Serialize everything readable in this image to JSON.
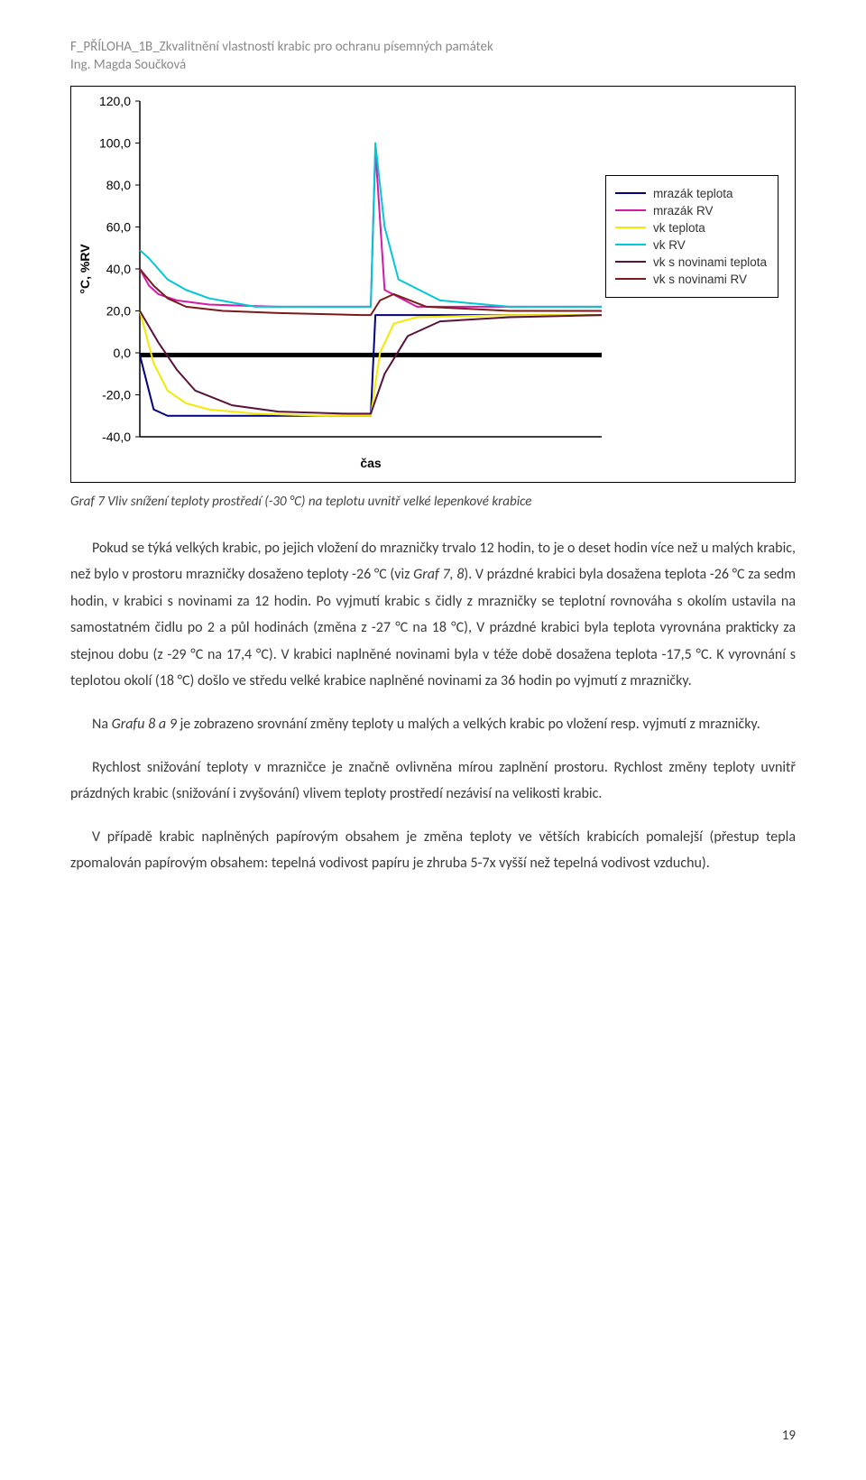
{
  "header": {
    "line1": "F_PŘÍLOHA_1B_Zkvalitnění vlastností krabic pro ochranu písemných památek",
    "line2": "Ing. Magda Součková"
  },
  "chart": {
    "type": "line",
    "title_fontsize": 0,
    "ylabel": "°C, %RV",
    "ylabel_fontsize": 14,
    "ylabel_fontweight": "bold",
    "xlabel": "čas",
    "xlabel_fontsize": 14,
    "xlabel_fontweight": "bold",
    "ylim": [
      -40,
      120
    ],
    "yticks": [
      -40,
      -20,
      0,
      20,
      40,
      60,
      80,
      100,
      120
    ],
    "ytick_labels": [
      "-40,0",
      "-20,0",
      "0,0",
      "20,0",
      "40,0",
      "60,0",
      "80,0",
      "100,0",
      "120,0"
    ],
    "xlim": [
      0,
      100
    ],
    "legend": {
      "items": [
        {
          "label": "mrazák teplota",
          "color": "#000080"
        },
        {
          "label": "mrazák RV",
          "color": "#d61aa6"
        },
        {
          "label": "vk teplota",
          "color": "#f2ea00"
        },
        {
          "label": "vk RV",
          "color": "#00c8d6"
        },
        {
          "label": "vk s novinami teplota",
          "color": "#5a123a"
        },
        {
          "label": "vk s novinami RV",
          "color": "#7a1a1a"
        }
      ]
    },
    "axis_color": "#000000",
    "background_color": "#ffffff",
    "line_width": 2,
    "series": {
      "mrazak_teplota": {
        "color": "#000080",
        "x": [
          0,
          3,
          6,
          10,
          20,
          40,
          48,
          50,
          51,
          52,
          60,
          80,
          100
        ],
        "y": [
          -1,
          -27,
          -30,
          -30,
          -30,
          -30,
          -30,
          -30,
          18,
          18,
          18,
          18,
          18
        ]
      },
      "mrazak_rv": {
        "color": "#d61aa6",
        "x": [
          0,
          2,
          4,
          8,
          15,
          30,
          48,
          50,
          51,
          53,
          60,
          80,
          100
        ],
        "y": [
          40,
          32,
          28,
          25,
          23,
          22,
          22,
          22,
          97,
          30,
          22,
          22,
          22
        ]
      },
      "vk_teplota": {
        "color": "#f2ea00",
        "x": [
          0,
          3,
          6,
          10,
          15,
          25,
          40,
          48,
          50,
          52,
          55,
          60,
          80,
          100
        ],
        "y": [
          20,
          -5,
          -18,
          -24,
          -27,
          -29,
          -30,
          -30,
          -30,
          0,
          14,
          17,
          18,
          18
        ]
      },
      "vk_rv": {
        "color": "#00c8d6",
        "x": [
          0,
          2,
          4,
          6,
          10,
          15,
          25,
          48,
          50,
          51,
          53,
          56,
          65,
          80,
          100
        ],
        "y": [
          49,
          45,
          40,
          35,
          30,
          26,
          22,
          22,
          22,
          100,
          60,
          35,
          25,
          22,
          22
        ]
      },
      "vk_novinami_teplota": {
        "color": "#5a123a",
        "x": [
          0,
          4,
          8,
          12,
          20,
          30,
          45,
          48,
          50,
          53,
          58,
          65,
          80,
          100
        ],
        "y": [
          20,
          5,
          -8,
          -18,
          -25,
          -28,
          -29,
          -29,
          -29,
          -10,
          8,
          15,
          17,
          18
        ]
      },
      "vk_novinami_rv": {
        "color": "#7a1a1a",
        "x": [
          0,
          3,
          6,
          10,
          18,
          30,
          48,
          50,
          52,
          55,
          62,
          80,
          100
        ],
        "y": [
          40,
          32,
          26,
          22,
          20,
          19,
          18,
          18,
          25,
          28,
          22,
          20,
          20
        ]
      },
      "zero_ref": {
        "color": "#000000",
        "x": [
          0,
          100
        ],
        "y": [
          -1,
          -1
        ]
      }
    }
  },
  "caption": "Graf 7 Vliv snížení teploty prostředí (-30 °C) na teplotu uvnitř velké lepenkové krabice",
  "paragraphs": {
    "p1a": "Pokud se týká velkých krabic, po jejich vložení do mrazničky trvalo 12 hodin, to je o deset hodin více než u malých krabic, než bylo v prostoru mrazničky dosaženo teploty -26 °C (viz ",
    "p1b": "). V prázdné krabici byla dosažena teplota -26 °C za sedm hodin, v krabici s novinami za 12 hodin. Po vyjmutí krabic s čidly z mrazničky se teplotní rovnováha s okolím ustavila na samostatném čidlu po 2 a půl hodinách (změna z -27 °C na 18 °C), V prázdné krabici byla teplota vyrovnána prakticky za stejnou dobu (z -29 °C na 17,4 °C). V krabici naplněné novinami byla v téže době dosažena teplota -17,5 °C. K vyrovnání s teplotou okolí (18 °C) došlo ve středu velké krabice naplněné novinami za 36 hodin po vyjmutí z mrazničky.",
    "p1italic": "Graf 7, 8",
    "p2a": "Na ",
    "p2italic": "Grafu 8 a 9",
    "p2b": " je zobrazeno srovnání změny teploty u malých a velkých krabic po vložení resp. vyjmutí z mrazničky.",
    "p3": "Rychlost snižování teploty v mrazničce je značně ovlivněna mírou zaplnění prostoru. Rychlost změny teploty uvnitř prázdných krabic (snižování i zvyšování) vlivem teploty prostředí nezávisí na velikosti krabic.",
    "p4": "V případě krabic naplněných papírovým obsahem je změna teploty ve větších krabicích pomalejší (přestup tepla zpomalován papírovým obsahem: tepelná vodivost papíru je zhruba 5-7x vyšší než tepelná vodivost vzduchu)."
  },
  "pagenum": "19"
}
